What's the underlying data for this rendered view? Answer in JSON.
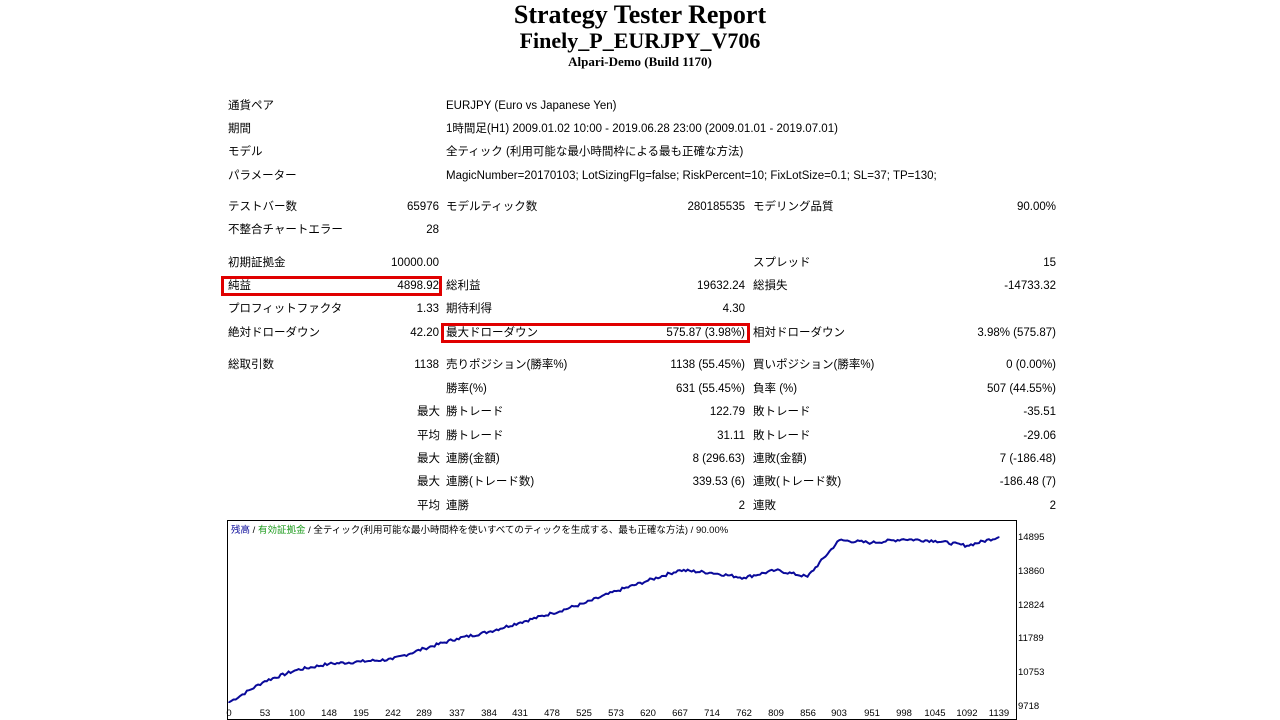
{
  "header": {
    "title": "Strategy Tester Report",
    "ea_name": "Finely_P_EURJPY_V706",
    "server": "Alpari-Demo (Build 1170)"
  },
  "settings": {
    "symbol_label": "通貨ペア",
    "symbol_value": "EURJPY (Euro vs Japanese Yen)",
    "period_label": "期間",
    "period_value": "1時間足(H1) 2009.01.02 10:00 - 2019.06.28 23:00 (2009.01.01 - 2019.07.01)",
    "model_label": "モデル",
    "model_value": "全ティック (利用可能な最小時間枠による最も正確な方法)",
    "params_label": "パラメーター",
    "params_value": "MagicNumber=20170103; LotSizingFlg=false; RiskPercent=10; FixLotSize=0.1; SL=37; TP=130;"
  },
  "stats": {
    "bars_label": "テストバー数",
    "bars_value": "65976",
    "ticks_label": "モデルティック数",
    "ticks_value": "280185535",
    "quality_label": "モデリング品質",
    "quality_value": "90.00%",
    "mismatch_label": "不整合チャートエラー",
    "mismatch_value": "28",
    "deposit_label": "初期証拠金",
    "deposit_value": "10000.00",
    "spread_label": "スプレッド",
    "spread_value": "15",
    "net_label": "純益",
    "net_value": "4898.92",
    "gross_profit_label": "総利益",
    "gross_profit_value": "19632.24",
    "gross_loss_label": "総損失",
    "gross_loss_value": "-14733.32",
    "pf_label": "プロフィットファクタ",
    "pf_value": "1.33",
    "expected_label": "期待利得",
    "expected_value": "4.30",
    "abs_dd_label": "絶対ドローダウン",
    "abs_dd_value": "42.20",
    "max_dd_label": "最大ドローダウン",
    "max_dd_value": "575.87 (3.98%)",
    "rel_dd_label": "相対ドローダウン",
    "rel_dd_value": "3.98% (575.87)",
    "trades_label": "総取引数",
    "trades_value": "1138",
    "short_label": "売りポジション(勝率%)",
    "short_value": "1138 (55.45%)",
    "long_label": "買いポジション(勝率%)",
    "long_value": "0 (0.00%)",
    "win_label": "勝率(%)",
    "win_value": "631 (55.45%)",
    "loss_label": "負率 (%)",
    "loss_value": "507 (44.55%)",
    "max_prefix": "最大",
    "avg_prefix": "平均",
    "win_trade_label": "勝トレード",
    "max_win_value": "122.79",
    "loss_trade_label": "敗トレード",
    "max_loss_value": "-35.51",
    "avg_win_value": "31.11",
    "avg_loss_value": "-29.06",
    "cw_amount_label": "連勝(金額)",
    "cw_amount_value": "8 (296.63)",
    "cl_amount_label": "連敗(金額)",
    "cl_amount_value": "7 (-186.48)",
    "cw_count_label": "連勝(トレード数)",
    "cw_count_value": "339.53 (6)",
    "cl_count_label": "連敗(トレード数)",
    "cl_count_value": "-186.48 (7)",
    "avg_cw_label": "連勝",
    "avg_cw_value": "2",
    "avg_cl_label": "連敗",
    "avg_cl_value": "2"
  },
  "chart_legend": {
    "balance": "残高",
    "sep": " / ",
    "equity": "有効証拠金",
    "model": "全ティック(利用可能な最小時間枠を使いすべてのティックを生成する、最も正確な方法)",
    "quality": "90.00%"
  },
  "colors": {
    "balance_line": "#0a0a9a",
    "equity_legend": "#1a9a1a",
    "highlight": "#e00000"
  },
  "chart_data": {
    "type": "line",
    "series": [
      {
        "name": "残高",
        "x": [
          0,
          53,
          100,
          148,
          195,
          242,
          289,
          337,
          384,
          431,
          478,
          525,
          573,
          620,
          667,
          714,
          762,
          809,
          856,
          903,
          951,
          998,
          1045,
          1092,
          1139
        ],
        "values": [
          9830,
          10480,
          10820,
          11010,
          11080,
          11150,
          11480,
          11780,
          11990,
          12280,
          12560,
          12860,
          13240,
          13560,
          13880,
          13800,
          13650,
          13880,
          13680,
          14800,
          14720,
          14830,
          14780,
          14630,
          14895
        ]
      }
    ],
    "yticks": [
      "14895",
      "13860",
      "12824",
      "11789",
      "10753",
      "9718"
    ],
    "xticks": [
      "0",
      "53",
      "100",
      "148",
      "195",
      "242",
      "289",
      "337",
      "384",
      "431",
      "478",
      "525",
      "573",
      "620",
      "667",
      "714",
      "762",
      "809",
      "856",
      "903",
      "951",
      "998",
      "1045",
      "1092",
      "1139"
    ],
    "ylim": [
      9718,
      15050
    ],
    "xlim": [
      0,
      1160
    ],
    "grid": false
  }
}
